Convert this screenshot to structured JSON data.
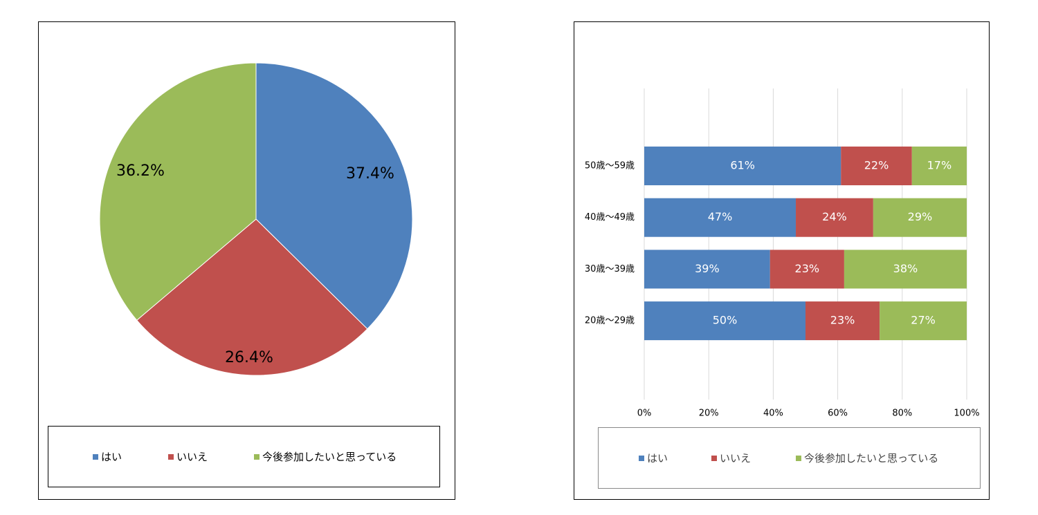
{
  "chart_data": [
    {
      "type": "pie",
      "title": "",
      "categories": [
        "はい",
        "いいえ",
        "今後参加したいと思っている"
      ],
      "values": [
        37.4,
        26.4,
        36.2
      ],
      "labels": [
        "37.4%",
        "26.4%",
        "36.2%"
      ],
      "colors": [
        "#4f81bd",
        "#c0504d",
        "#9bbb59"
      ],
      "legend": {
        "position": "bottom",
        "entries": [
          "はい",
          "いいえ",
          "今後参加したいと思っている"
        ]
      }
    },
    {
      "type": "bar",
      "orientation": "horizontal",
      "stacked": "percent",
      "title": "",
      "categories": [
        "50歳～59歳",
        "40歳～49歳",
        "30歳～39歳",
        "20歳～29歳"
      ],
      "series": [
        {
          "name": "はい",
          "values": [
            61,
            47,
            39,
            50
          ],
          "color": "#4f81bd"
        },
        {
          "name": "いいえ",
          "values": [
            22,
            24,
            23,
            23
          ],
          "color": "#c0504d"
        },
        {
          "name": "今後参加したいと思っている",
          "values": [
            17,
            29,
            38,
            27
          ],
          "color": "#9bbb59"
        }
      ],
      "xlim": [
        0,
        100
      ],
      "xticks": [
        "0%",
        "20%",
        "40%",
        "60%",
        "80%",
        "100%"
      ],
      "grid": true,
      "legend": {
        "position": "bottom",
        "entries": [
          "はい",
          "いいえ",
          "今後参加したいと思っている"
        ]
      }
    }
  ]
}
